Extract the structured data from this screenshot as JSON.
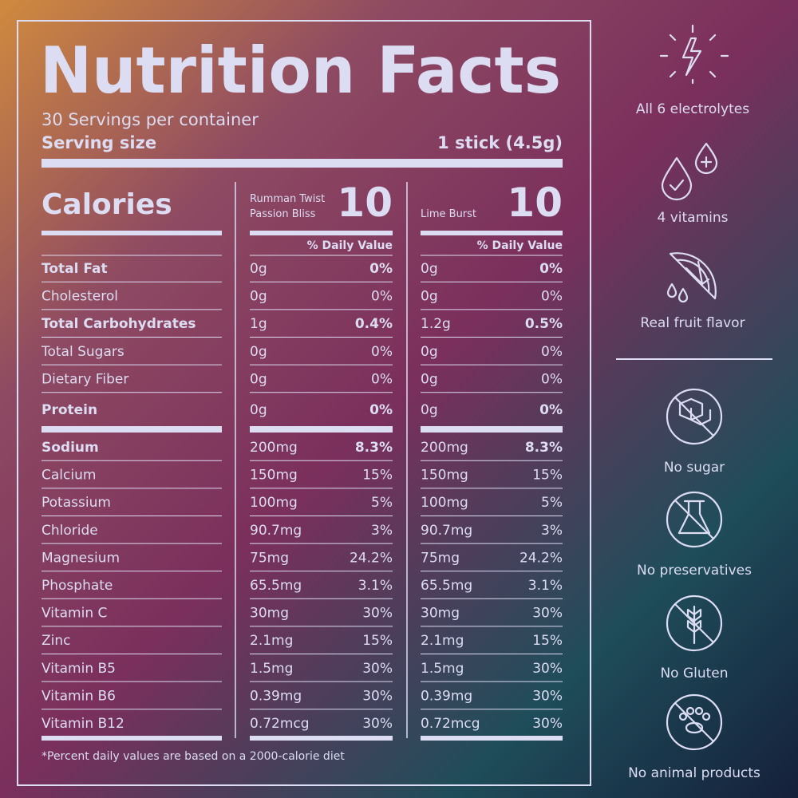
{
  "label": {
    "title": "Nutrition Facts",
    "servings": "30 Servings per container",
    "serving_size": {
      "label": "Serving size",
      "value": "1 stick (4.5g)"
    },
    "calories_label": "Calories",
    "products": [
      {
        "name_lines": [
          "Rumman Twist",
          "Passion Bliss"
        ],
        "calories": "10"
      },
      {
        "name_lines": [
          "Lime Burst"
        ],
        "calories": "10"
      }
    ],
    "daily_value_header": "% Daily Value",
    "sections": [
      {
        "rows": [
          {
            "label": "Total Fat",
            "bold": true,
            "amounts": [
              [
                "0g",
                "0%"
              ],
              [
                "0g",
                "0%"
              ]
            ]
          },
          {
            "label": "Cholesterol",
            "bold": false,
            "amounts": [
              [
                "0g",
                "0%"
              ],
              [
                "0g",
                "0%"
              ]
            ]
          },
          {
            "label": "Total Carbohydrates",
            "bold": true,
            "amounts": [
              [
                "1g",
                "0.4%"
              ],
              [
                "1.2g",
                "0.5%"
              ]
            ]
          },
          {
            "label": "Total Sugars",
            "bold": false,
            "amounts": [
              [
                "0g",
                "0%"
              ],
              [
                "0g",
                "0%"
              ]
            ]
          },
          {
            "label": "Dietary Fiber",
            "bold": false,
            "amounts": [
              [
                "0g",
                "0%"
              ],
              [
                "0g",
                "0%"
              ]
            ]
          },
          {
            "label": "Protein",
            "bold": true,
            "amounts": [
              [
                "0g",
                "0%"
              ],
              [
                "0g",
                "0%"
              ]
            ]
          }
        ]
      },
      {
        "rows": [
          {
            "label": "Sodium",
            "bold": true,
            "amounts": [
              [
                "200mg",
                "8.3%"
              ],
              [
                "200mg",
                "8.3%"
              ]
            ]
          },
          {
            "label": "Calcium",
            "bold": false,
            "amounts": [
              [
                "150mg",
                "15%"
              ],
              [
                "150mg",
                "15%"
              ]
            ]
          },
          {
            "label": "Potassium",
            "bold": false,
            "amounts": [
              [
                "100mg",
                "5%"
              ],
              [
                "100mg",
                "5%"
              ]
            ]
          },
          {
            "label": "Chloride",
            "bold": false,
            "amounts": [
              [
                "90.7mg",
                "3%"
              ],
              [
                "90.7mg",
                "3%"
              ]
            ]
          },
          {
            "label": "Magnesium",
            "bold": false,
            "amounts": [
              [
                "75mg",
                "24.2%"
              ],
              [
                "75mg",
                "24.2%"
              ]
            ]
          },
          {
            "label": "Phosphate",
            "bold": false,
            "amounts": [
              [
                "65.5mg",
                "3.1%"
              ],
              [
                "65.5mg",
                "3.1%"
              ]
            ]
          },
          {
            "label": "Vitamin C",
            "bold": false,
            "amounts": [
              [
                "30mg",
                "30%"
              ],
              [
                "30mg",
                "30%"
              ]
            ]
          },
          {
            "label": "Zinc",
            "bold": false,
            "amounts": [
              [
                "2.1mg",
                "15%"
              ],
              [
                "2.1mg",
                "15%"
              ]
            ]
          },
          {
            "label": "Vitamin B5",
            "bold": false,
            "amounts": [
              [
                "1.5mg",
                "30%"
              ],
              [
                "1.5mg",
                "30%"
              ]
            ]
          },
          {
            "label": "Vitamin B6",
            "bold": false,
            "amounts": [
              [
                "0.39mg",
                "30%"
              ],
              [
                "0.39mg",
                "30%"
              ]
            ]
          },
          {
            "label": "Vitamin B12",
            "bold": false,
            "amounts": [
              [
                "0.72mcg",
                "30%"
              ],
              [
                "0.72mcg",
                "30%"
              ]
            ]
          }
        ]
      }
    ],
    "footnote": "*Percent daily values are based on a 2000-calorie diet"
  },
  "features": {
    "benefits": [
      "All 6 electrolytes",
      "4 vitamins",
      "Real fruit flavor"
    ],
    "free_from": [
      "No sugar",
      "No preservatives",
      "No Gluten",
      "No animal products"
    ]
  }
}
